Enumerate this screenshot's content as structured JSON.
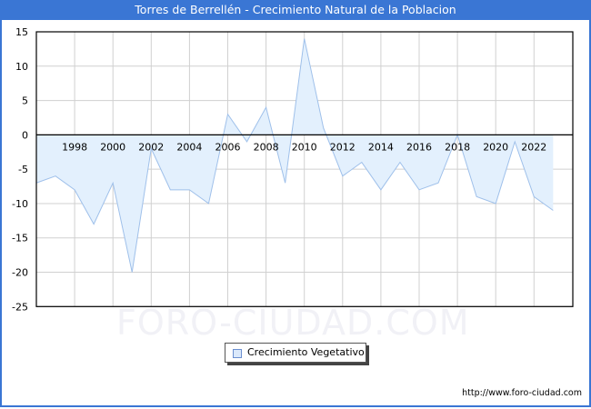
{
  "header": {
    "title": "Torres de Berrellén - Crecimiento Natural de la Poblacion"
  },
  "legend": {
    "label": "Crecimiento Vegetativo",
    "swatch_color": "#dbe9fb"
  },
  "footer": {
    "url": "http://www.foro-ciudad.com"
  },
  "watermark": "FORO-CIUDAD.COM",
  "colors": {
    "title_bar": "#3a76d4",
    "line": "#9fc0ea",
    "fill": "#e3f0fd",
    "grid": "#d0d0d0"
  },
  "chart_data": {
    "type": "area",
    "title": "Torres de Berrellén - Crecimiento Natural de la Poblacion",
    "xlabel": "",
    "ylabel": "",
    "x": [
      1996,
      1997,
      1998,
      1999,
      2000,
      2001,
      2002,
      2003,
      2004,
      2005,
      2006,
      2007,
      2008,
      2009,
      2010,
      2011,
      2012,
      2013,
      2014,
      2015,
      2016,
      2017,
      2018,
      2019,
      2020,
      2021,
      2022,
      2023
    ],
    "series": [
      {
        "name": "Crecimiento Vegetativo",
        "values": [
          -7,
          -6,
          -8,
          -13,
          -7,
          -20,
          -2,
          -8,
          -8,
          -10,
          3,
          -1,
          4,
          -7,
          14,
          1,
          -6,
          -4,
          -8,
          -4,
          -8,
          -7,
          0,
          -9,
          -10,
          -1,
          -9,
          -11
        ]
      }
    ],
    "x_tick_labels": [
      "1998",
      "2000",
      "2002",
      "2004",
      "2006",
      "2008",
      "2010",
      "2012",
      "2014",
      "2016",
      "2018",
      "2020",
      "2022"
    ],
    "y_tick_labels": [
      "15",
      "10",
      "5",
      "0",
      "-5",
      "-10",
      "-15",
      "-20",
      "-25"
    ],
    "ylim": [
      -25,
      15
    ],
    "grid": true,
    "legend_position": "bottom-center"
  }
}
